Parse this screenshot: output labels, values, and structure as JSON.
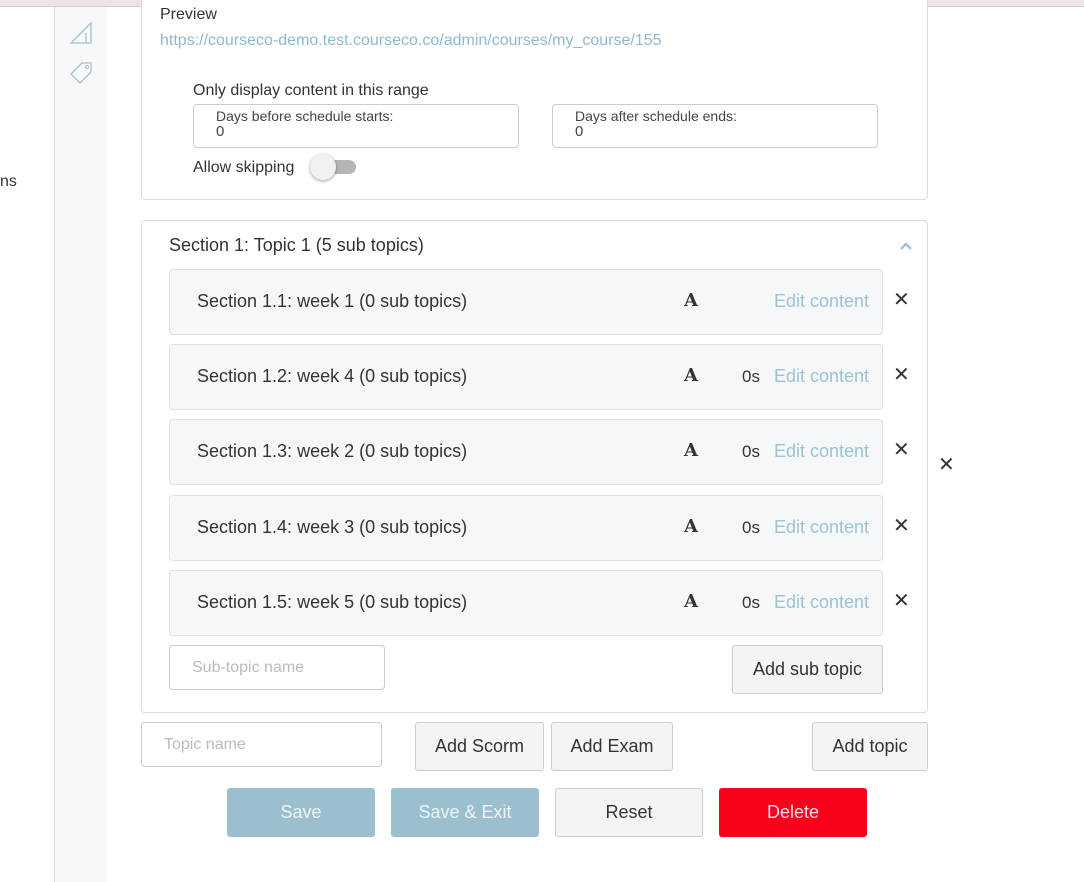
{
  "left_panel": {
    "partial_text": "ns"
  },
  "preview": {
    "label": "Preview",
    "url": "https://courseco-demo.test.courseco.co/admin/courses/my_course/155"
  },
  "range": {
    "heading": "Only display content in this range",
    "before_label": "Days before schedule starts:",
    "before_value": "0",
    "after_label": "Days after schedule ends:",
    "after_value": "0",
    "allow_skipping_label": "Allow skipping",
    "allow_skipping_on": false
  },
  "section": {
    "title": "Section 1: Topic 1",
    "count": "(5 sub topics)",
    "rows": [
      {
        "title": "Section 1.1: week 1",
        "count": "(0 sub topics)",
        "icon": "A",
        "duration": "",
        "edit": "Edit content"
      },
      {
        "title": "Section 1.2: week 4",
        "count": "(0 sub topics)",
        "icon": "A",
        "duration": "0s",
        "edit": "Edit content"
      },
      {
        "title": "Section 1.3: week 2",
        "count": "(0 sub topics)",
        "icon": "A",
        "duration": "0s",
        "edit": "Edit content"
      },
      {
        "title": "Section 1.4: week 3",
        "count": "(0 sub topics)",
        "icon": "A",
        "duration": "0s",
        "edit": "Edit content"
      },
      {
        "title": "Section 1.5: week 5",
        "count": "(0 sub topics)",
        "icon": "A",
        "duration": "0s",
        "edit": "Edit content"
      }
    ],
    "subtopic_placeholder": "Sub-topic name",
    "add_sub_topic": "Add sub topic"
  },
  "topic": {
    "placeholder": "Topic name",
    "add_scorm": "Add Scorm",
    "add_exam": "Add Exam",
    "add_topic": "Add topic"
  },
  "actions": {
    "save": "Save",
    "save_exit": "Save & Exit",
    "reset": "Reset",
    "delete": "Delete"
  },
  "colors": {
    "link": "#8fb9cc",
    "primary": "#9cbfcf",
    "danger": "#fa001a"
  }
}
